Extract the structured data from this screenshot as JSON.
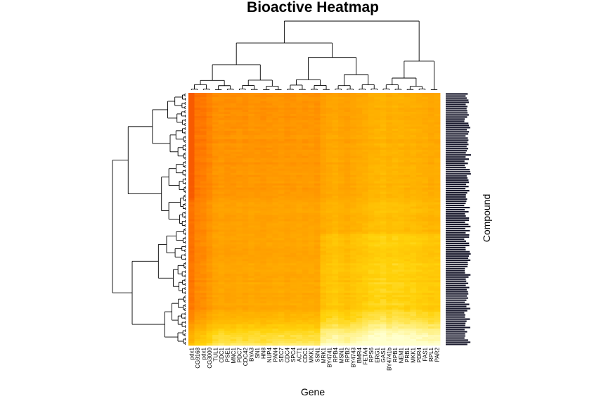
{
  "chart_data": {
    "type": "heatmap",
    "title": "Bioactive Heatmap",
    "xlabel": "Gene",
    "ylabel": "Compound",
    "color_scale": [
      "#ffffcc",
      "#ffec6e",
      "#ffd20a",
      "#ffb400",
      "#ff9a00",
      "#ff7a00",
      "#f85a00"
    ],
    "value_range": [
      0,
      1
    ],
    "column_dendrogram": true,
    "row_dendrogram": true,
    "columns": [
      "pdx1",
      "CG9168",
      "pdx1",
      "CG3000",
      "TUL1",
      "CDC1",
      "PSE1",
      "MNC1",
      "PDC7",
      "CDC42",
      "BYA3",
      "SN1",
      "HN8",
      "NUP4",
      "PAN4",
      "SEC7",
      "CDC4",
      "SPC4",
      "ACT1",
      "CDC1",
      "MKK1",
      "SSN1",
      "MRK1",
      "BY4741",
      "RPB4",
      "MSN1",
      "RPB2",
      "BY4743",
      "BMR4",
      "FETA4",
      "RPS6",
      "ERG1",
      "GAS1",
      "BY4741b",
      "RPB1",
      "NEM1",
      "PRB1",
      "MKK1",
      "PDR4",
      "FAS1",
      "RPL1",
      "PAR2"
    ],
    "column_profile": [
      0.88,
      0.78,
      0.76,
      0.7,
      0.64,
      0.62,
      0.64,
      0.63,
      0.62,
      0.63,
      0.61,
      0.62,
      0.63,
      0.62,
      0.61,
      0.6,
      0.62,
      0.61,
      0.6,
      0.61,
      0.6,
      0.62,
      0.55,
      0.52,
      0.5,
      0.53,
      0.55,
      0.52,
      0.5,
      0.48,
      0.45,
      0.44,
      0.42,
      0.45,
      0.43,
      0.44,
      0.46,
      0.45,
      0.47,
      0.48,
      0.5,
      0.49
    ],
    "row_count": 120,
    "row_label": "Compound"
  }
}
